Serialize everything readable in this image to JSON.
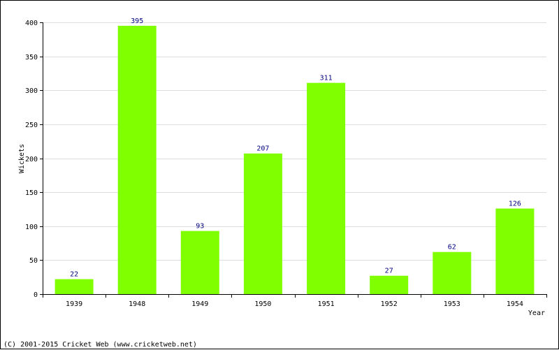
{
  "chart_data": {
    "type": "bar",
    "categories": [
      "1939",
      "1948",
      "1949",
      "1950",
      "1951",
      "1952",
      "1953",
      "1954"
    ],
    "values": [
      22,
      395,
      93,
      207,
      311,
      27,
      62,
      126
    ],
    "xlabel": "Year",
    "ylabel": "Wickets",
    "ylim": [
      0,
      400
    ],
    "yticks": [
      0,
      50,
      100,
      150,
      200,
      250,
      300,
      350,
      400
    ],
    "grid": true,
    "bar_color": "#80ff00",
    "data_label_color": "#000080"
  },
  "footer": {
    "copyright": "(C) 2001-2015 Cricket Web (www.cricketweb.net)"
  }
}
